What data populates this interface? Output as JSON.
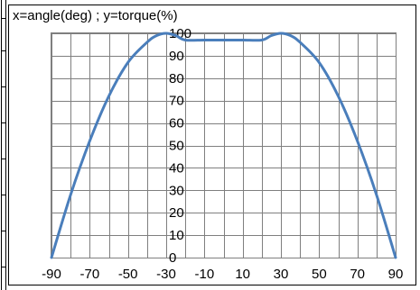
{
  "chart_data": {
    "type": "line",
    "title": "x=angle(deg) ; y=torque(%)",
    "xlabel": "",
    "ylabel": "",
    "xlim": [
      -90,
      90
    ],
    "ylim": [
      0,
      100
    ],
    "x_ticks": [
      -90,
      -80,
      -70,
      -60,
      -50,
      -40,
      -30,
      -20,
      -10,
      0,
      10,
      20,
      30,
      40,
      50,
      60,
      70,
      80,
      90
    ],
    "x_tick_labels": [
      "-90",
      "-70",
      "-50",
      "-30",
      "-10",
      "10",
      "30",
      "50",
      "70",
      "90"
    ],
    "y_ticks": [
      0,
      10,
      20,
      30,
      40,
      50,
      60,
      70,
      80,
      90,
      100
    ],
    "y_tick_labels": [
      "0",
      "10",
      "20",
      "30",
      "40",
      "50",
      "60",
      "70",
      "80",
      "90",
      "100"
    ],
    "grid": true,
    "legend": "none",
    "colors": {
      "series": "#4a7ebb",
      "grid": "#7f7f7f",
      "border": "#000000"
    },
    "series": [
      {
        "x": [
          -90,
          -80,
          -70,
          -60,
          -50,
          -40,
          -35,
          -30,
          -25,
          -20,
          -10,
          0,
          10,
          20,
          25,
          30,
          35,
          40,
          50,
          60,
          70,
          80,
          90
        ],
        "values": [
          0,
          28,
          52,
          72,
          87,
          96,
          99,
          100,
          99,
          97,
          97,
          97,
          97,
          97,
          99,
          100,
          99,
          96,
          87,
          72,
          52,
          28,
          0
        ]
      }
    ]
  }
}
